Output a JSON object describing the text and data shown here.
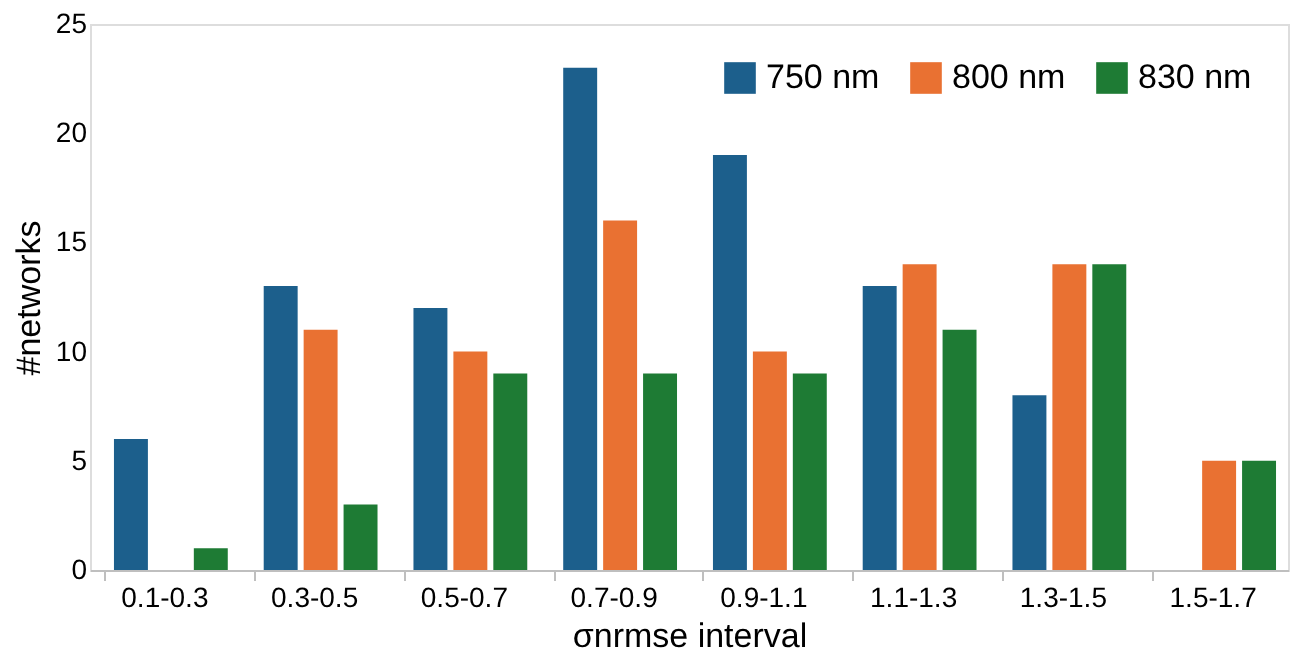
{
  "chart_data": {
    "type": "bar",
    "xlabel": "σnrmse interval",
    "ylabel": "#networks",
    "categories": [
      "0.1-0.3",
      "0.3-0.5",
      "0.5-0.7",
      "0.7-0.9",
      "0.9-1.1",
      "1.1-1.3",
      "1.3-1.5",
      "1.5-1.7"
    ],
    "series": [
      {
        "name": "750 nm",
        "color": "#1c5f8c",
        "values": [
          6,
          13,
          12,
          23,
          19,
          13,
          8,
          0
        ]
      },
      {
        "name": "800 nm",
        "color": "#e97132",
        "values": [
          0,
          11,
          10,
          16,
          10,
          14,
          14,
          5
        ]
      },
      {
        "name": "830 nm",
        "color": "#1e7b34",
        "values": [
          1,
          3,
          9,
          9,
          9,
          11,
          14,
          5
        ]
      }
    ],
    "ylim": [
      0,
      25
    ],
    "yticks": [
      0,
      5,
      10,
      15,
      20,
      25
    ],
    "grid": false,
    "legend": "top right"
  }
}
